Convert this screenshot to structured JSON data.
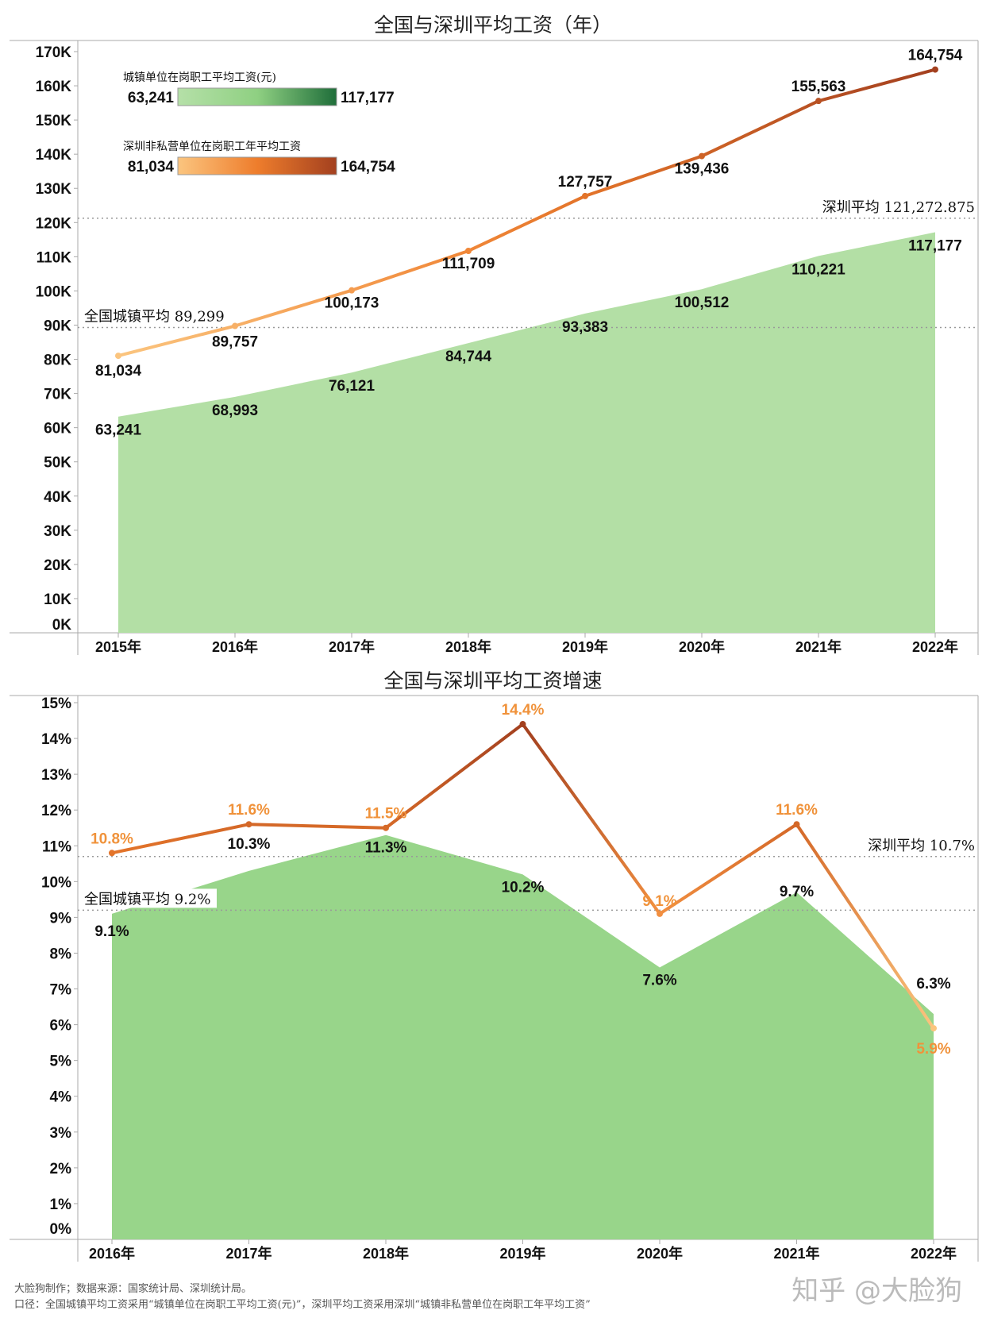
{
  "chart_data": [
    {
      "type": "area+line",
      "title": "全国与深圳平均工资（年）",
      "categories": [
        "2015年",
        "2016年",
        "2017年",
        "2018年",
        "2019年",
        "2020年",
        "2021年",
        "2022年"
      ],
      "series": [
        {
          "name": "城镇单位在岗职工平均工资(元)",
          "type": "area",
          "values": [
            63241,
            68993,
            76121,
            84744,
            93383,
            100512,
            110221,
            117177
          ],
          "labels": [
            "63,241",
            "68,993",
            "76,121",
            "84,744",
            "93,383",
            "100,512",
            "110,221",
            "117,177"
          ],
          "color": "#b3dfa5"
        },
        {
          "name": "深圳非私营单位在岗职工年平均工资",
          "type": "line",
          "values": [
            81034,
            89757,
            100173,
            111709,
            127757,
            139436,
            155563,
            164754
          ],
          "labels": [
            "81,034",
            "89,757",
            "100,173",
            "111,709",
            "127,757",
            "139,436",
            "155,563",
            "164,754"
          ]
        }
      ],
      "legend": [
        {
          "title": "城镇单位在岗职工平均工资(元)",
          "min": "63,241",
          "max": "117,177",
          "colors": [
            "#b5e0a8",
            "#8fd082",
            "#1f6e3a"
          ]
        },
        {
          "title": "深圳非私营单位在岗职工年平均工资",
          "min": "81,034",
          "max": "164,754",
          "colors": [
            "#fbc57f",
            "#ee7d2c",
            "#a3401f"
          ]
        }
      ],
      "ylim": [
        0,
        170000
      ],
      "yticks": [
        "0K",
        "10K",
        "20K",
        "30K",
        "40K",
        "50K",
        "60K",
        "70K",
        "80K",
        "90K",
        "100K",
        "110K",
        "120K",
        "130K",
        "140K",
        "150K",
        "160K",
        "170K"
      ],
      "reference_lines": [
        {
          "label": "全国城镇平均 89,299",
          "value": 89299
        },
        {
          "label": "深圳平均 121,272.875",
          "value": 121272.875
        }
      ]
    },
    {
      "type": "area+line",
      "title": "全国与深圳平均工资增速",
      "categories": [
        "2016年",
        "2017年",
        "2018年",
        "2019年",
        "2020年",
        "2021年",
        "2022年"
      ],
      "series": [
        {
          "type": "area",
          "values": [
            9.1,
            10.3,
            11.3,
            10.2,
            7.6,
            9.7,
            6.3
          ],
          "labels": [
            "9.1%",
            "10.3%",
            "11.3%",
            "10.2%",
            "7.6%",
            "9.7%",
            "6.3%"
          ],
          "color": "#98d58a"
        },
        {
          "type": "line",
          "values": [
            10.8,
            11.6,
            11.5,
            14.4,
            9.1,
            11.6,
            5.9
          ],
          "labels": [
            "10.8%",
            "11.6%",
            "11.5%",
            "14.4%",
            "9.1%",
            "11.6%",
            "5.9%"
          ],
          "label_color": "#f0923a"
        }
      ],
      "ylim": [
        0,
        15
      ],
      "yticks": [
        "0%",
        "1%",
        "2%",
        "3%",
        "4%",
        "5%",
        "6%",
        "7%",
        "8%",
        "9%",
        "10%",
        "11%",
        "12%",
        "13%",
        "14%",
        "15%"
      ],
      "reference_lines": [
        {
          "label": "全国城镇平均 9.2%",
          "value": 9.2
        },
        {
          "label": "深圳平均 10.7%",
          "value": 10.7
        }
      ]
    }
  ],
  "footer": {
    "line1": "大脸狗制作；数据来源：国家统计局、深圳统计局。",
    "line2": "口径：全国城镇平均工资采用“城镇单位在岗职工平均工资(元)”，深圳平均工资采用深圳“城镇非私营单位在岗职工年平均工资”",
    "watermark": "知乎 @大脸狗"
  }
}
